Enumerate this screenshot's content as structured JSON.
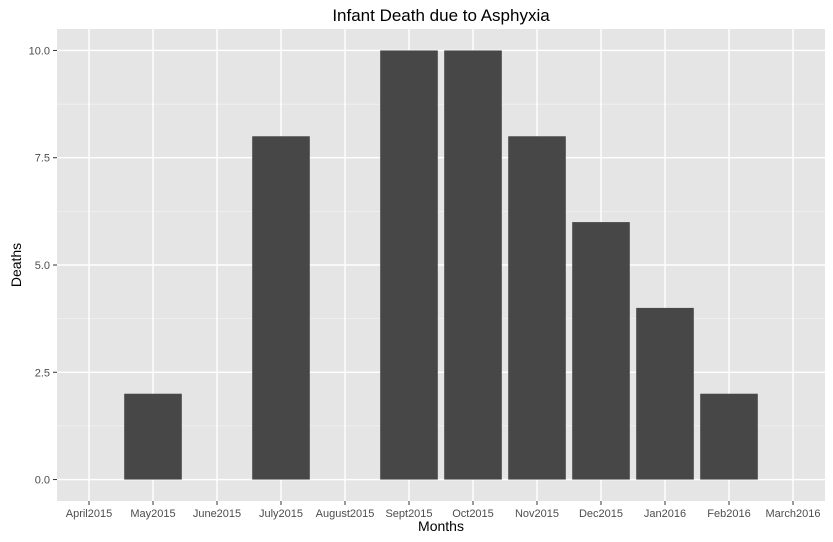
{
  "chart_data": {
    "type": "bar",
    "title": "Infant Death due to Asphyxia",
    "xlabel": "Months",
    "ylabel": "Deaths",
    "categories": [
      "April2015",
      "May2015",
      "June2015",
      "July2015",
      "August2015",
      "Sept2015",
      "Oct2015",
      "Nov2015",
      "Dec2015",
      "Jan2016",
      "Feb2016",
      "March2016"
    ],
    "values": [
      0,
      2,
      0,
      8,
      0,
      10,
      10,
      8,
      6,
      4,
      2,
      0
    ],
    "ylim": [
      -0.5,
      10.5
    ],
    "yticks": [
      0,
      2.5,
      5,
      7.5,
      10
    ],
    "ytick_labels": [
      "0.0",
      "2.5",
      "5.0",
      "7.5",
      "10.0"
    ],
    "grid": true,
    "legend": "none",
    "colors": {
      "bar": "#474747",
      "panel": "#e5e5e5",
      "grid_major": "#ffffff",
      "grid_minor": "#f2f2f2",
      "tick": "#333333"
    }
  }
}
